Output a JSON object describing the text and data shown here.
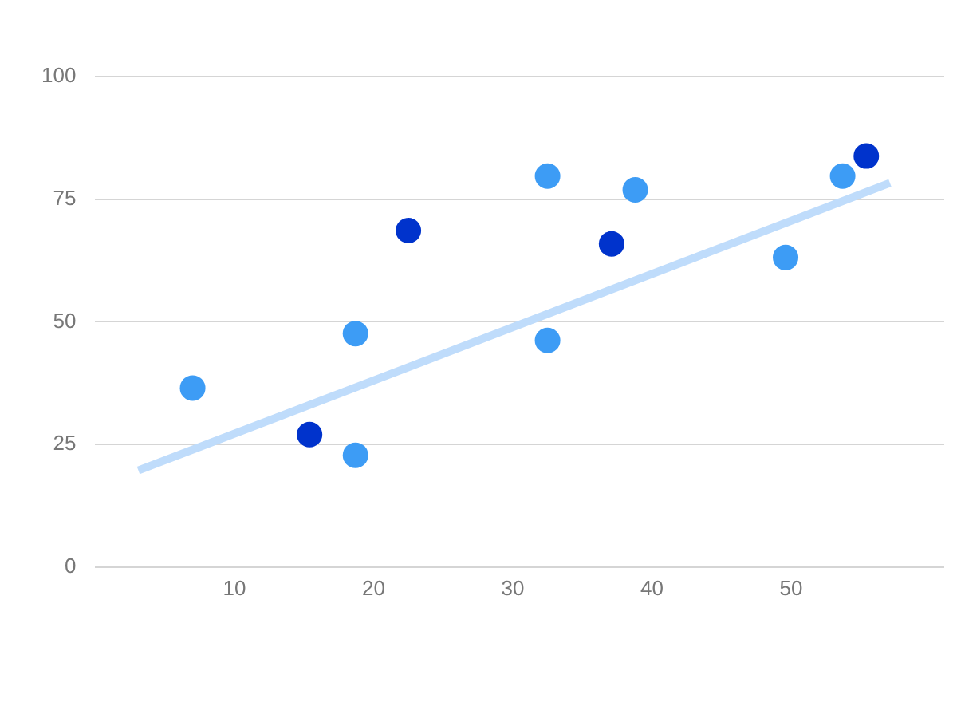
{
  "chart_data": {
    "type": "scatter",
    "xlim": [
      0,
      61
    ],
    "xticks": [
      10,
      20,
      30,
      40,
      50
    ],
    "ylim": [
      0,
      100
    ],
    "yticks": [
      0,
      25,
      50,
      75,
      100
    ],
    "grid": "y",
    "marker": "circle",
    "series": [
      {
        "type": "line",
        "marker": "none",
        "x": [
          3.1,
          57.1
        ],
        "values": [
          19.7,
          78.3
        ],
        "color": "#bfdcfb"
      },
      {
        "x": [
          7.0,
          15.4,
          18.7,
          18.7,
          22.5,
          32.5,
          32.5,
          37.1,
          38.8,
          49.6,
          53.7,
          55.4
        ],
        "values": [
          36.5,
          27,
          47.6,
          22.8,
          68.6,
          79.7,
          46.2,
          65.9,
          76.9,
          63.1,
          79.7,
          83.8
        ],
        "colors": [
          "#3d9cf5",
          "#0033cc",
          "#3d9cf5",
          "#3d9cf5",
          "#0033cc",
          "#3d9cf5",
          "#3d9cf5",
          "#0033cc",
          "#3d9cf5",
          "#3d9cf5",
          "#3d9cf5",
          "#0033cc"
        ]
      }
    ]
  }
}
